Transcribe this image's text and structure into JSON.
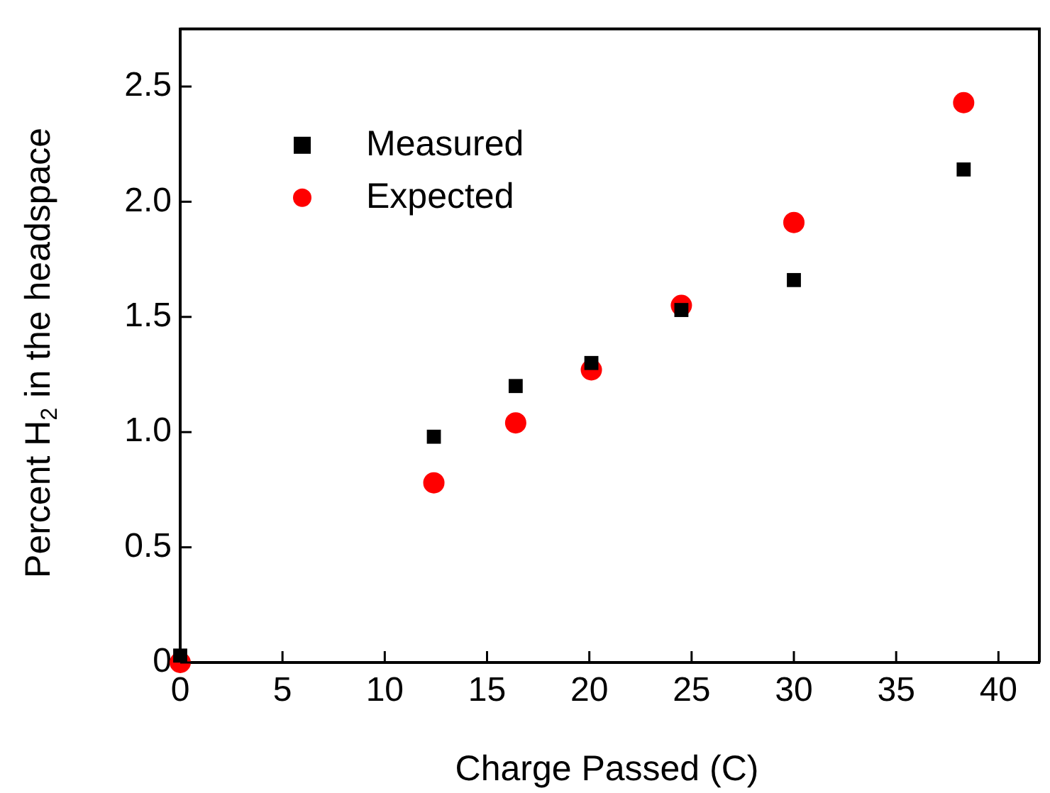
{
  "chart_data": {
    "type": "scatter",
    "xlabel": "Charge Passed (C)",
    "ylabel": "Percent H$_{2}$ in the headspace",
    "xlim": [
      0,
      42
    ],
    "xticks": [
      0,
      5,
      10,
      15,
      20,
      25,
      30,
      35,
      40
    ],
    "ylim": [
      0,
      2.75
    ],
    "yticks": [
      0,
      {
        "value": 0.5,
        "label": "0.5"
      },
      {
        "value": 1,
        "label": "1.0"
      },
      {
        "value": 1.5,
        "label": "1.5"
      },
      {
        "value": 2,
        "label": "2.0"
      },
      {
        "value": 2.5,
        "label": "2.5"
      }
    ],
    "legend": "top left",
    "series": [
      {
        "name": "Measured",
        "color": "#000000",
        "marker": "square",
        "x": [
          0,
          12.4,
          16.4,
          20.1,
          24.5,
          30,
          38.3
        ],
        "values": [
          0.03,
          0.98,
          1.2,
          1.3,
          1.53,
          1.66,
          2.14
        ]
      },
      {
        "name": "Expected",
        "color": "#ff0000",
        "marker": "circle",
        "x": [
          0,
          12.4,
          16.4,
          20.1,
          24.5,
          30,
          38.3
        ],
        "values": [
          0,
          0.78,
          1.04,
          1.27,
          1.55,
          1.91,
          2.43
        ]
      }
    ]
  }
}
